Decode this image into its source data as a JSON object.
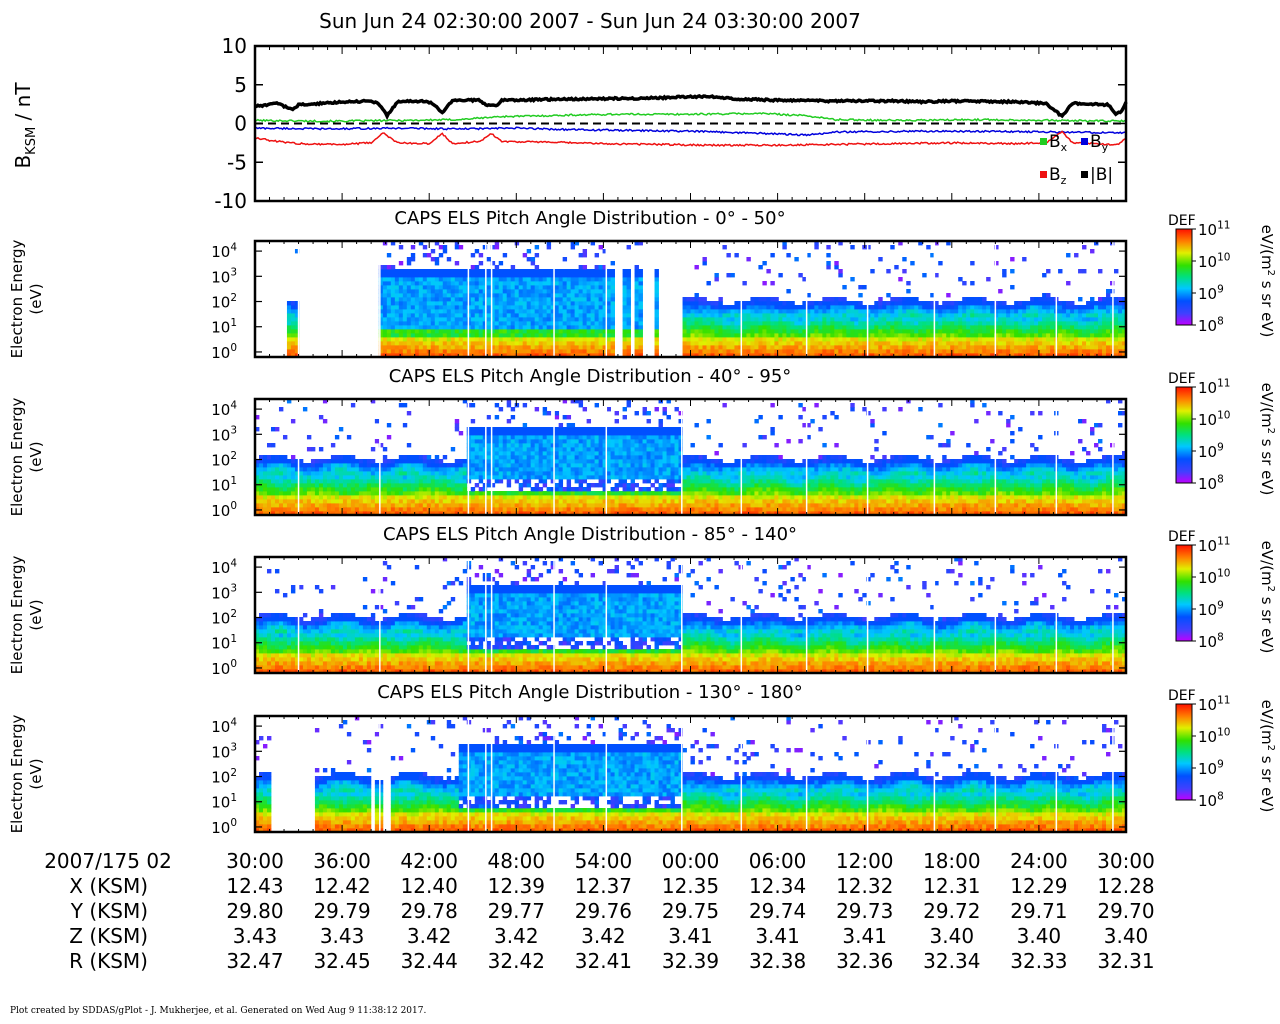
{
  "title": "Sun Jun 24 02:30:00 2007 - Sun Jun 24 03:30:00 2007",
  "footer": "Plot created by SDDAS/gPlot - J. Mukherjee, et al.  Generated on Wed Aug 9 11:38:12 2017.",
  "colors": {
    "bx": "#22cc22",
    "by": "#0000dd",
    "bz": "#ee1111",
    "btot": "#000000"
  },
  "chart_data": [
    {
      "type": "line",
      "ylabel_main": "B",
      "ylabel_sub": "KSM",
      "ylabel_unit": " / nT",
      "ylim": [
        -10,
        10
      ],
      "yticks": [
        "10",
        "5",
        "0",
        "-5",
        "-10"
      ],
      "xlim": [
        0,
        60
      ],
      "legend_placement": "bottom-right",
      "zero_line": "dashed",
      "series": [
        {
          "name": "B",
          "sub": "x",
          "color_key": "bx",
          "points": [
            [
              0,
              0.4
            ],
            [
              5,
              0.3
            ],
            [
              10,
              0.4
            ],
            [
              14,
              0.5
            ],
            [
              17,
              0.9
            ],
            [
              20,
              1.0
            ],
            [
              22,
              1.1
            ],
            [
              25,
              1.2
            ],
            [
              30,
              1.2
            ],
            [
              35,
              1.3
            ],
            [
              38,
              1.0
            ],
            [
              40,
              0.5
            ],
            [
              45,
              0.4
            ],
            [
              50,
              0.5
            ],
            [
              55,
              0.4
            ],
            [
              60,
              0.3
            ]
          ]
        },
        {
          "name": "B",
          "sub": "y",
          "color_key": "by",
          "points": [
            [
              0,
              -0.6
            ],
            [
              5,
              -0.7
            ],
            [
              10,
              -0.6
            ],
            [
              14,
              -0.7
            ],
            [
              18,
              -0.6
            ],
            [
              22,
              -0.8
            ],
            [
              26,
              -0.9
            ],
            [
              30,
              -1.0
            ],
            [
              34,
              -1.2
            ],
            [
              38,
              -1.5
            ],
            [
              40,
              -1.1
            ],
            [
              45,
              -1.0
            ],
            [
              50,
              -1.0
            ],
            [
              55,
              -1.1
            ],
            [
              60,
              -1.2
            ]
          ]
        },
        {
          "name": "B",
          "sub": "z",
          "color_key": "bz",
          "points": [
            [
              0,
              -1.8
            ],
            [
              1,
              -2.2
            ],
            [
              3,
              -2.6
            ],
            [
              6,
              -2.7
            ],
            [
              8,
              -2.5
            ],
            [
              8.8,
              -1.2
            ],
            [
              9.8,
              -2.5
            ],
            [
              12,
              -2.6
            ],
            [
              12.9,
              -1.3
            ],
            [
              13.6,
              -2.6
            ],
            [
              15.5,
              -2.3
            ],
            [
              16.3,
              -1.3
            ],
            [
              17,
              -2.3
            ],
            [
              20,
              -2.4
            ],
            [
              24,
              -2.6
            ],
            [
              28,
              -2.7
            ],
            [
              32,
              -2.8
            ],
            [
              36,
              -2.8
            ],
            [
              40,
              -2.7
            ],
            [
              44,
              -2.6
            ],
            [
              48,
              -2.5
            ],
            [
              52,
              -2.6
            ],
            [
              54.5,
              -2.5
            ],
            [
              55.6,
              -1.1
            ],
            [
              56.3,
              -2.5
            ],
            [
              58,
              -2.6
            ],
            [
              59.3,
              -2.8
            ],
            [
              60,
              -2.0
            ]
          ]
        },
        {
          "name": "|B|",
          "sub": "",
          "color_key": "btot",
          "points": [
            [
              0,
              2.2
            ],
            [
              1,
              2.4
            ],
            [
              1.5,
              2.7
            ],
            [
              2.5,
              1.8
            ],
            [
              3,
              2.4
            ],
            [
              4,
              2.5
            ],
            [
              6,
              2.8
            ],
            [
              8,
              2.9
            ],
            [
              8.5,
              2.6
            ],
            [
              9.1,
              1.0
            ],
            [
              9.8,
              2.8
            ],
            [
              11.5,
              2.9
            ],
            [
              12.2,
              2.6
            ],
            [
              12.9,
              1.4
            ],
            [
              13.6,
              3.0
            ],
            [
              15.5,
              3.0
            ],
            [
              15.9,
              2.4
            ],
            [
              16.6,
              2.3
            ],
            [
              17,
              3.0
            ],
            [
              20,
              3.1
            ],
            [
              24,
              3.2
            ],
            [
              28,
              3.3
            ],
            [
              29,
              3.4
            ],
            [
              31.5,
              3.5
            ],
            [
              33,
              3.2
            ],
            [
              36,
              3.0
            ],
            [
              40,
              2.9
            ],
            [
              44,
              2.9
            ],
            [
              46,
              2.8
            ],
            [
              48,
              2.9
            ],
            [
              52,
              2.8
            ],
            [
              54.5,
              2.6
            ],
            [
              55.6,
              0.9
            ],
            [
              56.3,
              2.6
            ],
            [
              57.5,
              2.5
            ],
            [
              58.8,
              2.4
            ],
            [
              59.3,
              1.2
            ],
            [
              59.7,
              1.6
            ],
            [
              60,
              2.8
            ]
          ]
        }
      ]
    },
    {
      "type": "heatmap",
      "title": "CAPS ELS Pitch Angle Distribution - 0° - 50°",
      "ylabel": [
        "Electron Energy",
        "(eV)"
      ],
      "yticks": [
        {
          "base": "10",
          "exp": "0"
        },
        {
          "base": "10",
          "exp": "1"
        },
        {
          "base": "10",
          "exp": "2"
        },
        {
          "base": "10",
          "exp": "3"
        },
        {
          "base": "10",
          "exp": "4"
        }
      ],
      "ylim_log10": [
        -0.2,
        4.4
      ],
      "xlim": [
        0,
        60
      ],
      "colorbar": {
        "label": "DEF",
        "unit": "eV/(m",
        "unit_exp": "2",
        "unit_tail": " s sr eV)",
        "ticks": [
          {
            "base": "10",
            "exp": "11"
          },
          {
            "base": "10",
            "exp": "10"
          },
          {
            "base": "10",
            "exp": "9"
          },
          {
            "base": "10",
            "exp": "8"
          }
        ],
        "range_log10": [
          8,
          11
        ]
      },
      "data_gaps": [
        [
          0,
          2.2
        ],
        [
          3.0,
          8.6
        ],
        [
          24.9,
          25.2
        ],
        [
          25.9,
          26.2
        ],
        [
          26.7,
          27.6
        ],
        [
          27.9,
          29.4
        ]
      ],
      "burst_intervals": [
        [
          8.6,
          29.4
        ]
      ],
      "vertical_lines": [
        3.0,
        8.6,
        14.7,
        15.9,
        16.3,
        20.6,
        24.2,
        29.4,
        33.5,
        38.0,
        42.2,
        46.8,
        51.0,
        55.2,
        59.1
      ]
    },
    {
      "type": "heatmap",
      "title": "CAPS ELS Pitch Angle Distribution - 40° - 95°",
      "ylabel": [
        "Electron Energy",
        "(eV)"
      ],
      "yticks": [
        {
          "base": "10",
          "exp": "0"
        },
        {
          "base": "10",
          "exp": "1"
        },
        {
          "base": "10",
          "exp": "2"
        },
        {
          "base": "10",
          "exp": "3"
        },
        {
          "base": "10",
          "exp": "4"
        }
      ],
      "ylim_log10": [
        -0.2,
        4.4
      ],
      "xlim": [
        0,
        60
      ],
      "colorbar": {
        "label": "DEF",
        "unit": "eV/(m",
        "unit_exp": "2",
        "unit_tail": " s sr eV)",
        "ticks": [
          {
            "base": "10",
            "exp": "11"
          },
          {
            "base": "10",
            "exp": "10"
          },
          {
            "base": "10",
            "exp": "9"
          },
          {
            "base": "10",
            "exp": "8"
          }
        ],
        "range_log10": [
          8,
          11
        ]
      },
      "data_gaps": [],
      "burst_intervals": [
        [
          14.7,
          29.4
        ]
      ],
      "vertical_lines": [
        3.0,
        8.6,
        14.7,
        15.9,
        16.3,
        20.6,
        24.2,
        29.4,
        33.5,
        38.0,
        42.2,
        46.8,
        51.0,
        55.2,
        59.1
      ]
    },
    {
      "type": "heatmap",
      "title": "CAPS ELS Pitch Angle Distribution - 85° - 140°",
      "ylabel": [
        "Electron Energy",
        "(eV)"
      ],
      "yticks": [
        {
          "base": "10",
          "exp": "0"
        },
        {
          "base": "10",
          "exp": "1"
        },
        {
          "base": "10",
          "exp": "2"
        },
        {
          "base": "10",
          "exp": "3"
        },
        {
          "base": "10",
          "exp": "4"
        }
      ],
      "ylim_log10": [
        -0.2,
        4.4
      ],
      "xlim": [
        0,
        60
      ],
      "colorbar": {
        "label": "DEF",
        "unit": "eV/(m",
        "unit_exp": "2",
        "unit_tail": " s sr eV)",
        "ticks": [
          {
            "base": "10",
            "exp": "11"
          },
          {
            "base": "10",
            "exp": "10"
          },
          {
            "base": "10",
            "exp": "9"
          },
          {
            "base": "10",
            "exp": "8"
          }
        ],
        "range_log10": [
          8,
          11
        ]
      },
      "data_gaps": [],
      "burst_intervals": [
        [
          14.7,
          29.4
        ]
      ],
      "vertical_lines": [
        3.0,
        8.6,
        14.7,
        15.9,
        16.3,
        20.6,
        24.2,
        29.4,
        33.5,
        38.0,
        42.2,
        46.8,
        51.0,
        55.2,
        59.1
      ]
    },
    {
      "type": "heatmap",
      "title": "CAPS ELS Pitch Angle Distribution - 130° - 180°",
      "ylabel": [
        "Electron Energy",
        "(eV)"
      ],
      "yticks": [
        {
          "base": "10",
          "exp": "0"
        },
        {
          "base": "10",
          "exp": "1"
        },
        {
          "base": "10",
          "exp": "2"
        },
        {
          "base": "10",
          "exp": "3"
        },
        {
          "base": "10",
          "exp": "4"
        }
      ],
      "ylim_log10": [
        -0.2,
        4.4
      ],
      "xlim": [
        0,
        60
      ],
      "colorbar": {
        "label": "DEF",
        "unit": "eV/(m",
        "unit_exp": "2",
        "unit_tail": " s sr eV)",
        "ticks": [
          {
            "base": "10",
            "exp": "11"
          },
          {
            "base": "10",
            "exp": "10"
          },
          {
            "base": "10",
            "exp": "9"
          },
          {
            "base": "10",
            "exp": "8"
          }
        ],
        "range_log10": [
          8,
          11
        ]
      },
      "data_gaps": [
        [
          1.2,
          4.1
        ],
        [
          8.0,
          8.3
        ],
        [
          8.9,
          9.3
        ]
      ],
      "burst_intervals": [
        [
          13.9,
          29.4
        ]
      ],
      "vertical_lines": [
        3.0,
        8.6,
        14.7,
        15.9,
        16.3,
        20.6,
        24.2,
        29.4,
        33.5,
        38.0,
        42.2,
        46.8,
        51.0,
        55.2,
        59.1
      ]
    }
  ],
  "time_axis": {
    "label": "2007/175 02",
    "ticks": [
      "30:00",
      "36:00",
      "42:00",
      "48:00",
      "54:00",
      "00:00",
      "06:00",
      "12:00",
      "18:00",
      "24:00",
      "30:00"
    ],
    "tick_minutes": [
      0,
      6,
      12,
      18,
      24,
      30,
      36,
      42,
      48,
      54,
      60
    ]
  },
  "ephemeris": [
    {
      "label": "X (KSM)",
      "values": [
        "12.43",
        "12.42",
        "12.40",
        "12.39",
        "12.37",
        "12.35",
        "12.34",
        "12.32",
        "12.31",
        "12.29",
        "12.28"
      ]
    },
    {
      "label": "Y (KSM)",
      "values": [
        "29.80",
        "29.79",
        "29.78",
        "29.77",
        "29.76",
        "29.75",
        "29.74",
        "29.73",
        "29.72",
        "29.71",
        "29.70"
      ]
    },
    {
      "label": "Z (KSM)",
      "values": [
        "3.43",
        "3.43",
        "3.42",
        "3.42",
        "3.42",
        "3.41",
        "3.41",
        "3.41",
        "3.40",
        "3.40",
        "3.40"
      ]
    },
    {
      "label": "R (KSM)",
      "values": [
        "32.47",
        "32.45",
        "32.44",
        "32.42",
        "32.41",
        "32.39",
        "32.38",
        "32.36",
        "32.34",
        "32.33",
        "32.31"
      ]
    }
  ]
}
